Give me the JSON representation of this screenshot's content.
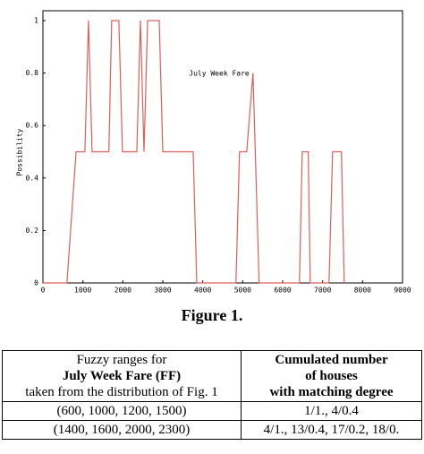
{
  "chart_data": {
    "type": "line",
    "xlabel": "July Week Fare",
    "ylabel": "Possibility",
    "x": [
      0,
      600,
      830,
      1050,
      1140,
      1230,
      1650,
      1720,
      1900,
      1990,
      2350,
      2440,
      2530,
      2620,
      2910,
      3000,
      3760,
      3850,
      4830,
      4920,
      5100,
      5257,
      5410,
      6420,
      6490,
      6640,
      6690,
      7160,
      7250,
      7470,
      7540
    ],
    "values": [
      0,
      0,
      0.5,
      0.5,
      1,
      0.5,
      0.5,
      1,
      1,
      0.5,
      0.5,
      1,
      0.5,
      1,
      1,
      0.5,
      0.5,
      0,
      0,
      0.5,
      0.5,
      0.8,
      0,
      0,
      0.5,
      0.5,
      0,
      0,
      0.5,
      0.5,
      0
    ],
    "color": "#d9605a",
    "xlim": [
      0,
      9000
    ],
    "xticks": [
      0,
      1000,
      2000,
      3000,
      4000,
      5000,
      6000,
      7000,
      8000,
      9000
    ],
    "ylim": [
      0,
      1
    ],
    "yticks": [
      0,
      0.2,
      0.4,
      0.6,
      0.8,
      1
    ]
  },
  "caption": "Figure 1.",
  "table": {
    "header": [
      [
        "Fuzzy ranges for",
        "July Week Fare (FF)",
        "taken from the distribution of Fig. 1"
      ],
      [
        "Cumulated number",
        "of  houses",
        "with matching degree"
      ]
    ],
    "rows": [
      [
        "(600, 1000, 1200, 1500)",
        "1/1., 4/0.4"
      ],
      [
        "(1400, 1600, 2000, 2300)",
        "4/1., 13/0.4, 17/0.2, 18/0."
      ]
    ]
  }
}
